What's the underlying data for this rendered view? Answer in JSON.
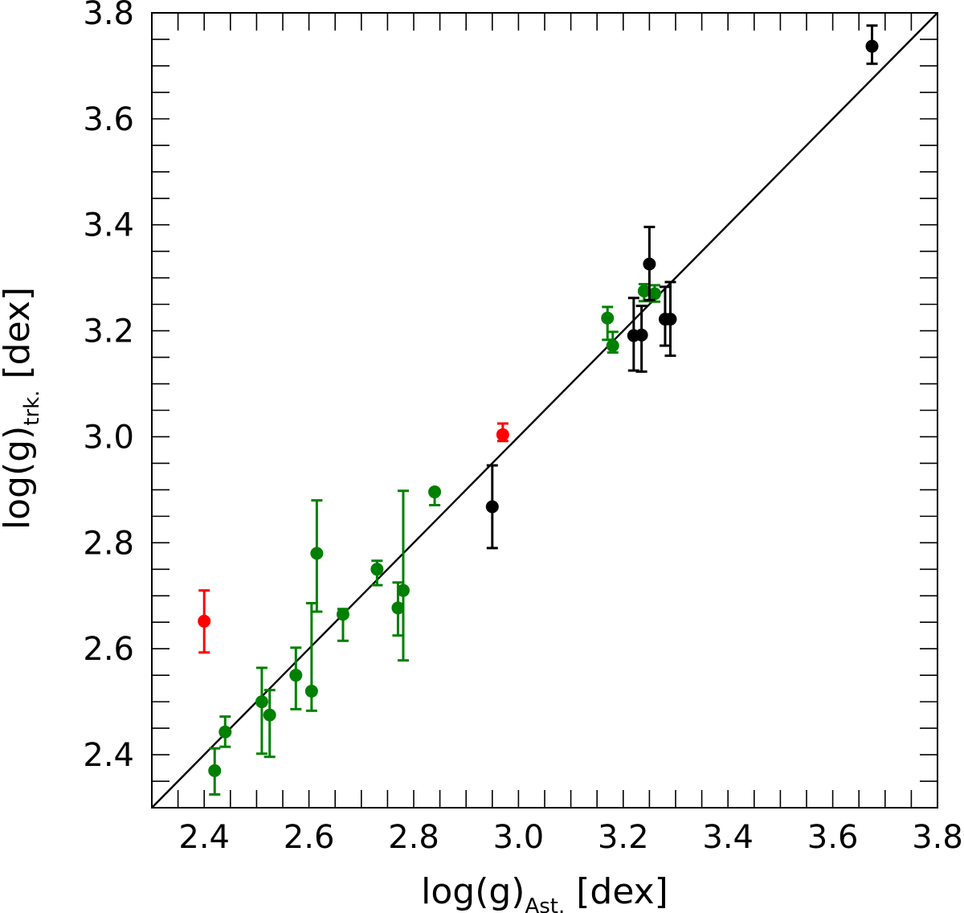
{
  "chart_data": {
    "type": "scatter",
    "title": "",
    "xlabel": {
      "main": "log(g)",
      "sub": "Ast.",
      "unit": " [dex]"
    },
    "ylabel": {
      "main": "log(g)",
      "sub": "trk.",
      "unit": " [dex]"
    },
    "xlim": [
      2.3,
      3.8
    ],
    "ylim": [
      2.3,
      3.8
    ],
    "xticks": [
      "2.4",
      "2.6",
      "2.8",
      "3.0",
      "3.2",
      "3.4",
      "3.6",
      "3.8"
    ],
    "yticks": [
      "2.4",
      "2.6",
      "2.8",
      "3.0",
      "3.2",
      "3.4",
      "3.6",
      "3.8"
    ],
    "grid": false,
    "reference_line": {
      "from": [
        2.3,
        2.3
      ],
      "to": [
        3.8,
        3.8
      ],
      "color": "#000000"
    },
    "series": [
      {
        "color": "#008000",
        "points": [
          {
            "x": 2.42,
            "y": 2.37,
            "lo": 2.325,
            "hi": 2.412
          },
          {
            "x": 2.44,
            "y": 2.443,
            "lo": 2.415,
            "hi": 2.472
          },
          {
            "x": 2.51,
            "y": 2.5,
            "lo": 2.402,
            "hi": 2.564
          },
          {
            "x": 2.525,
            "y": 2.475,
            "lo": 2.396,
            "hi": 2.522
          },
          {
            "x": 2.575,
            "y": 2.55,
            "lo": 2.486,
            "hi": 2.602
          },
          {
            "x": 2.605,
            "y": 2.52,
            "lo": 2.483,
            "hi": 2.686
          },
          {
            "x": 2.615,
            "y": 2.78,
            "lo": 2.67,
            "hi": 2.88
          },
          {
            "x": 2.665,
            "y": 2.665,
            "lo": 2.615,
            "hi": 2.675
          },
          {
            "x": 2.73,
            "y": 2.75,
            "lo": 2.72,
            "hi": 2.766
          },
          {
            "x": 2.77,
            "y": 2.677,
            "lo": 2.625,
            "hi": 2.725
          },
          {
            "x": 2.78,
            "y": 2.71,
            "lo": 2.578,
            "hi": 2.898
          },
          {
            "x": 2.84,
            "y": 2.896,
            "lo": 2.871,
            "hi": 2.9
          },
          {
            "x": 3.17,
            "y": 3.224,
            "lo": 3.183,
            "hi": 3.245
          },
          {
            "x": 3.18,
            "y": 3.172,
            "lo": 3.159,
            "hi": 3.198
          },
          {
            "x": 3.24,
            "y": 3.275,
            "lo": 3.256,
            "hi": 3.288
          },
          {
            "x": 3.26,
            "y": 3.27,
            "lo": 3.255,
            "hi": 3.286
          }
        ]
      },
      {
        "color": "#ff0000",
        "points": [
          {
            "x": 2.4,
            "y": 2.652,
            "lo": 2.593,
            "hi": 2.71
          },
          {
            "x": 2.97,
            "y": 3.004,
            "lo": 2.992,
            "hi": 3.025
          }
        ]
      },
      {
        "color": "#000000",
        "points": [
          {
            "x": 2.95,
            "y": 2.868,
            "lo": 2.79,
            "hi": 2.946
          },
          {
            "x": 3.22,
            "y": 3.191,
            "lo": 3.125,
            "hi": 3.262
          },
          {
            "x": 3.235,
            "y": 3.192,
            "lo": 3.123,
            "hi": 3.247
          },
          {
            "x": 3.25,
            "y": 3.326,
            "lo": 3.258,
            "hi": 3.396
          },
          {
            "x": 3.28,
            "y": 3.222,
            "lo": 3.172,
            "hi": 3.283
          },
          {
            "x": 3.29,
            "y": 3.222,
            "lo": 3.153,
            "hi": 3.292
          },
          {
            "x": 3.675,
            "y": 3.737,
            "lo": 3.704,
            "hi": 3.776
          }
        ]
      }
    ]
  }
}
